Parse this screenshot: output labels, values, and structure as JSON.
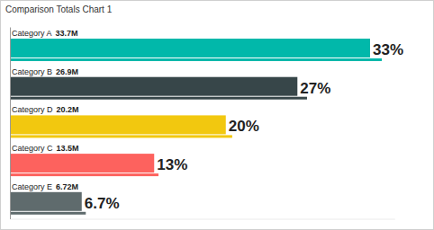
{
  "chart_data": {
    "type": "bar",
    "title": "Comparison Totals Chart 1",
    "orientation": "horizontal",
    "categories": [
      "Category A",
      "Category B",
      "Category D",
      "Category C",
      "Category E"
    ],
    "values": [
      33.7,
      26.9,
      20.2,
      13.5,
      6.72
    ],
    "value_labels": [
      "33.7M",
      "26.9M",
      "20.2M",
      "13.5M",
      "6.72M"
    ],
    "comparison_values": [
      34.8,
      27.8,
      20.8,
      13.9,
      7.1
    ],
    "percent_values": [
      33,
      27,
      20,
      13,
      6.7
    ],
    "percent_labels": [
      "33%",
      "27%",
      "20%",
      "13%",
      "6.7%"
    ],
    "colors": [
      "#01b8aa",
      "#374649",
      "#f2c80f",
      "#fd625e",
      "#5f6b6d"
    ],
    "xlim": [
      0,
      36
    ],
    "tick_labels": false,
    "data_labels": true
  }
}
